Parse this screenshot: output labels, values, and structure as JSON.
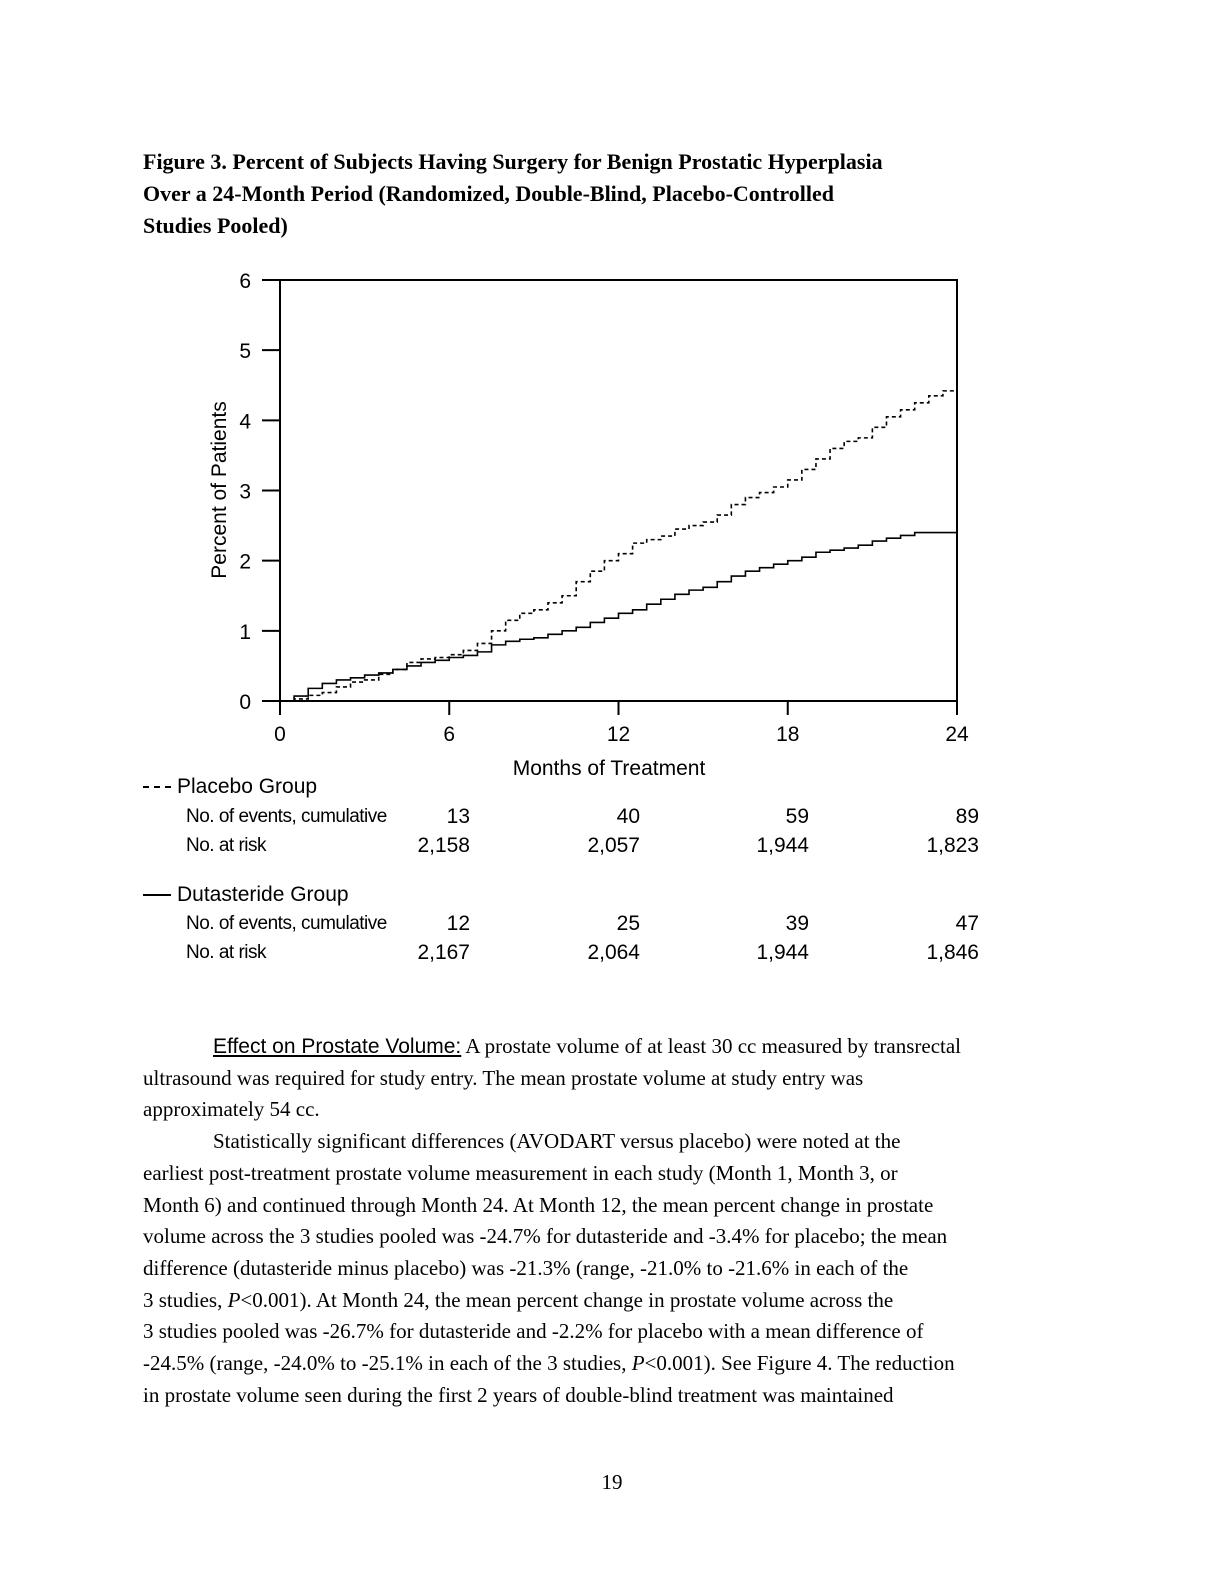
{
  "figure": {
    "title_lines": [
      "Figure 3. Percent of Subjects Having Surgery for Benign Prostatic Hyperplasia",
      "Over a 24-Month Period (Randomized, Double-Blind, Placebo-Controlled",
      "Studies Pooled)"
    ]
  },
  "chart_data": {
    "type": "line",
    "xlabel": "Months of Treatment",
    "ylabel": "Percent of Patients",
    "xlim": [
      0,
      24
    ],
    "ylim": [
      0,
      6
    ],
    "x_ticks": [
      "0",
      "6",
      "12",
      "18",
      "24"
    ],
    "y_ticks": [
      "0",
      "1",
      "2",
      "3",
      "4",
      "5",
      "6"
    ],
    "grid": false,
    "series": [
      {
        "name": "Placebo Group",
        "style": "dashed",
        "step": true,
        "points": [
          [
            0,
            0
          ],
          [
            0.5,
            0.03
          ],
          [
            1,
            0.08
          ],
          [
            1.5,
            0.12
          ],
          [
            2,
            0.2
          ],
          [
            2.5,
            0.27
          ],
          [
            3,
            0.3
          ],
          [
            3.5,
            0.38
          ],
          [
            4,
            0.45
          ],
          [
            4.5,
            0.55
          ],
          [
            5,
            0.6
          ],
          [
            5.5,
            0.62
          ],
          [
            6,
            0.66
          ],
          [
            6.5,
            0.72
          ],
          [
            7,
            0.82
          ],
          [
            7.5,
            1.0
          ],
          [
            8,
            1.15
          ],
          [
            8.5,
            1.25
          ],
          [
            9,
            1.3
          ],
          [
            9.5,
            1.4
          ],
          [
            10,
            1.5
          ],
          [
            10.5,
            1.7
          ],
          [
            11,
            1.85
          ],
          [
            11.5,
            2.0
          ],
          [
            12,
            2.1
          ],
          [
            12.5,
            2.25
          ],
          [
            13,
            2.3
          ],
          [
            13.5,
            2.35
          ],
          [
            14,
            2.45
          ],
          [
            14.5,
            2.5
          ],
          [
            15,
            2.55
          ],
          [
            15.5,
            2.65
          ],
          [
            16,
            2.8
          ],
          [
            16.5,
            2.9
          ],
          [
            17,
            2.97
          ],
          [
            17.5,
            3.05
          ],
          [
            18,
            3.15
          ],
          [
            18.5,
            3.3
          ],
          [
            19,
            3.45
          ],
          [
            19.5,
            3.6
          ],
          [
            20,
            3.7
          ],
          [
            20.5,
            3.75
          ],
          [
            21,
            3.9
          ],
          [
            21.5,
            4.05
          ],
          [
            22,
            4.15
          ],
          [
            22.5,
            4.25
          ],
          [
            23,
            4.35
          ],
          [
            23.5,
            4.42
          ],
          [
            24,
            4.42
          ]
        ]
      },
      {
        "name": "Dutasteride Group",
        "style": "solid",
        "step": true,
        "points": [
          [
            0,
            0
          ],
          [
            0.5,
            0.07
          ],
          [
            1,
            0.18
          ],
          [
            1.5,
            0.25
          ],
          [
            2,
            0.3
          ],
          [
            2.5,
            0.33
          ],
          [
            3,
            0.37
          ],
          [
            3.5,
            0.4
          ],
          [
            4,
            0.45
          ],
          [
            4.5,
            0.5
          ],
          [
            5,
            0.55
          ],
          [
            5.5,
            0.58
          ],
          [
            6,
            0.62
          ],
          [
            6.5,
            0.65
          ],
          [
            7,
            0.7
          ],
          [
            7.5,
            0.8
          ],
          [
            8,
            0.85
          ],
          [
            8.5,
            0.88
          ],
          [
            9,
            0.9
          ],
          [
            9.5,
            0.95
          ],
          [
            10,
            1.0
          ],
          [
            10.5,
            1.05
          ],
          [
            11,
            1.12
          ],
          [
            11.5,
            1.18
          ],
          [
            12,
            1.25
          ],
          [
            12.5,
            1.3
          ],
          [
            13,
            1.38
          ],
          [
            13.5,
            1.45
          ],
          [
            14,
            1.52
          ],
          [
            14.5,
            1.58
          ],
          [
            15,
            1.62
          ],
          [
            15.5,
            1.7
          ],
          [
            16,
            1.78
          ],
          [
            16.5,
            1.85
          ],
          [
            17,
            1.9
          ],
          [
            17.5,
            1.95
          ],
          [
            18,
            2.0
          ],
          [
            18.5,
            2.05
          ],
          [
            19,
            2.12
          ],
          [
            19.5,
            2.15
          ],
          [
            20,
            2.18
          ],
          [
            20.5,
            2.22
          ],
          [
            21,
            2.28
          ],
          [
            21.5,
            2.32
          ],
          [
            22,
            2.36
          ],
          [
            22.5,
            2.4
          ],
          [
            23,
            2.4
          ],
          [
            23.5,
            2.4
          ],
          [
            24,
            2.4
          ]
        ]
      }
    ]
  },
  "risk_table": {
    "placebo": {
      "label": "Placebo Group",
      "events_label": "No. of events, cumulative",
      "risk_label": "No. at risk",
      "events": [
        "13",
        "40",
        "59",
        "89"
      ],
      "at_risk": [
        "2,158",
        "2,057",
        "1,944",
        "1,823"
      ]
    },
    "dutasteride": {
      "label": "Dutasteride Group",
      "events_label": "No. of events, cumulative",
      "risk_label": "No. at risk",
      "events": [
        "12",
        "25",
        "39",
        "47"
      ],
      "at_risk": [
        "2,167",
        "2,064",
        "1,944",
        "1,846"
      ]
    }
  },
  "body": {
    "heading": "Effect on Prostate Volume:",
    "p1_first": " A prostate volume of at least 30 cc measured by transrectal",
    "p1_lines": [
      "ultrasound was required for study entry. The mean prostate volume at study entry was",
      "approximately 54 cc."
    ],
    "p2_lines": [
      "Statistically significant differences (AVODART versus placebo) were noted at the",
      "earliest post-treatment prostate volume measurement in each study (Month 1, Month 3, or",
      "Month 6) and continued through Month 24. At Month 12, the mean percent change in prostate",
      "volume across the 3 studies pooled was -24.7% for dutasteride and -3.4% for placebo; the mean",
      "difference (dutasteride minus placebo) was -21.3% (range, -21.0% to -21.6% in each of the"
    ],
    "p2_l6_a": "3 studies, ",
    "p2_l6_p": "P",
    "p2_l6_b": "<0.001). At Month 24, the mean percent change in prostate volume across the",
    "p2_l7": "3 studies pooled was -26.7% for dutasteride and -2.2% for placebo with a mean difference of",
    "p2_l8_a": "-24.5% (range, -24.0% to -25.1% in each of the 3 studies, ",
    "p2_l8_p": "P",
    "p2_l8_b": "<0.001). See Figure 4. The reduction",
    "p2_l9": "in prostate volume seen during the first 2 years of double-blind treatment was maintained"
  },
  "page_number": "19"
}
